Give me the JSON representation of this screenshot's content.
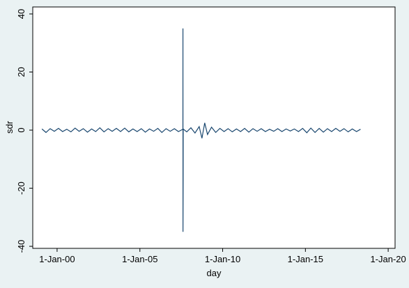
{
  "chart_data": {
    "type": "line",
    "x_label": "day",
    "y_label": "sdr",
    "x": [
      "1999-02-01",
      "1999-05-01",
      "1999-08-01",
      "1999-11-01",
      "2000-02-01",
      "2000-05-01",
      "2000-08-01",
      "2000-11-01",
      "2001-02-01",
      "2001-05-01",
      "2001-08-01",
      "2001-11-01",
      "2002-02-01",
      "2002-05-01",
      "2002-08-01",
      "2002-11-01",
      "2003-02-01",
      "2003-05-01",
      "2003-08-01",
      "2003-11-01",
      "2004-02-01",
      "2004-05-01",
      "2004-08-01",
      "2004-11-01",
      "2005-02-01",
      "2005-05-01",
      "2005-08-01",
      "2005-11-01",
      "2006-02-01",
      "2006-05-01",
      "2006-08-01",
      "2006-11-01",
      "2007-02-01",
      "2007-05-01",
      "2007-08-08",
      "2007-08-09",
      "2007-08-10",
      "2007-08-13",
      "2007-08-14",
      "2007-11-01",
      "2008-02-01",
      "2008-05-01",
      "2008-08-01",
      "2008-10-01",
      "2008-12-01",
      "2009-02-01",
      "2009-05-01",
      "2009-08-01",
      "2009-11-01",
      "2010-02-01",
      "2010-05-01",
      "2010-08-01",
      "2010-11-01",
      "2011-02-01",
      "2011-05-01",
      "2011-08-01",
      "2011-11-01",
      "2012-02-01",
      "2012-05-01",
      "2012-08-01",
      "2012-11-01",
      "2013-02-01",
      "2013-05-01",
      "2013-08-01",
      "2013-11-01",
      "2014-02-01",
      "2014-05-01",
      "2014-08-01",
      "2014-11-01",
      "2015-02-01",
      "2015-05-01",
      "2015-08-01",
      "2015-11-01",
      "2016-02-01",
      "2016-05-01",
      "2016-08-01",
      "2016-11-01",
      "2017-02-01",
      "2017-05-01",
      "2017-08-01",
      "2017-11-01",
      "2018-02-01",
      "2018-05-01"
    ],
    "series": [
      {
        "name": "sdr",
        "color": "#1a476f",
        "values": [
          0.4,
          -0.8,
          0.5,
          -0.4,
          0.6,
          -0.5,
          0.3,
          -0.6,
          0.7,
          -0.4,
          0.5,
          -0.7,
          0.4,
          -0.5,
          0.8,
          -0.6,
          0.5,
          -0.4,
          0.6,
          -0.5,
          0.7,
          -0.6,
          0.4,
          -0.5,
          0.5,
          -0.7,
          0.4,
          -0.4,
          0.6,
          -0.8,
          0.5,
          -0.4,
          0.5,
          -0.5,
          0.3,
          35,
          -35,
          -17,
          0.4,
          -0.6,
          0.8,
          -1.0,
          1.2,
          -2.8,
          2.5,
          -1.5,
          1.0,
          -0.8,
          0.6,
          -0.5,
          0.5,
          -0.6,
          0.4,
          -0.5,
          0.6,
          -0.7,
          0.5,
          -0.4,
          0.5,
          -0.5,
          0.3,
          -0.4,
          0.5,
          -0.5,
          0.4,
          -0.3,
          0.4,
          -0.5,
          0.6,
          -0.9,
          0.7,
          -0.8,
          0.6,
          -0.7,
          0.5,
          -0.5,
          0.6,
          -0.4,
          0.5,
          -0.6,
          0.4,
          -0.5,
          0.3
        ]
      }
    ],
    "xlim": [
      "1998-07-13",
      "2020-06-01"
    ],
    "xticks": [
      {
        "value": "2000-01-01",
        "label": "1-Jan-00"
      },
      {
        "value": "2005-01-01",
        "label": "1-Jan-05"
      },
      {
        "value": "2010-01-01",
        "label": "1-Jan-10"
      },
      {
        "value": "2015-01-01",
        "label": "1-Jan-15"
      },
      {
        "value": "2020-01-01",
        "label": "1-Jan-20"
      }
    ],
    "ylim": [
      -40.7,
      42.4
    ],
    "yticks": [
      40,
      20,
      0,
      -20,
      -40
    ],
    "grid": false
  }
}
